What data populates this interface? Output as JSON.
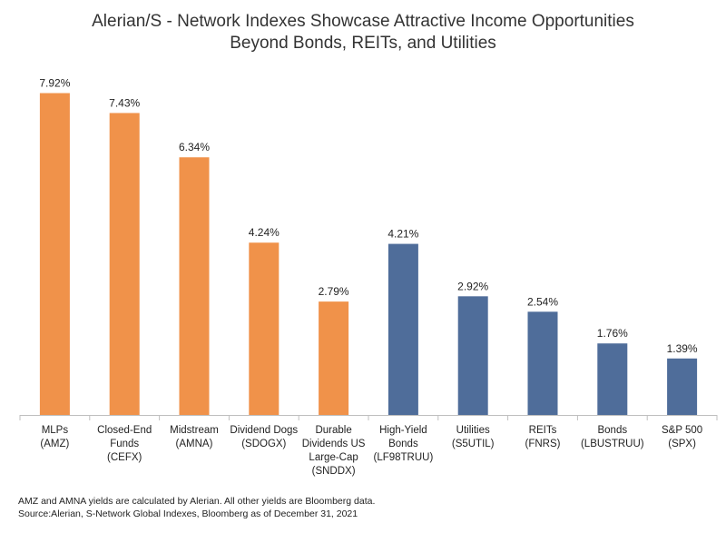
{
  "chart_data": {
    "type": "bar",
    "title": [
      "Alerian/S - Network Indexes Showcase Attractive Income Opportunities",
      "Beyond Bonds, REITs, and Utilities"
    ],
    "categories": [
      [
        "MLPs",
        "(AMZ)"
      ],
      [
        "Closed-End",
        "Funds",
        "(CEFX)"
      ],
      [
        "Midstream",
        "(AMNA)"
      ],
      [
        "Dividend Dogs",
        "(SDOGX)"
      ],
      [
        "Durable",
        "Dividends US",
        "Large-Cap",
        "(SNDDX)"
      ],
      [
        "High-Yield",
        "Bonds",
        "(LF98TRUU)"
      ],
      [
        "Utilities",
        "(S5UTIL)"
      ],
      [
        "REITs",
        "(FNRS)"
      ],
      [
        "Bonds",
        "(LBUSTRUU)"
      ],
      [
        "S&P 500",
        "(SPX)"
      ]
    ],
    "values": [
      7.92,
      7.43,
      6.34,
      4.24,
      2.79,
      4.21,
      2.92,
      2.54,
      1.76,
      1.39
    ],
    "data_labels": [
      "7.92%",
      "7.43%",
      "6.34%",
      "4.24%",
      "2.79%",
      "4.21%",
      "2.92%",
      "2.54%",
      "1.76%",
      "1.39%"
    ],
    "bar_colors": [
      "#F0924A",
      "#F0924A",
      "#F0924A",
      "#F0924A",
      "#F0924A",
      "#4F6D9A",
      "#4F6D9A",
      "#4F6D9A",
      "#4F6D9A",
      "#4F6D9A"
    ],
    "ylim": [
      0,
      8.2
    ],
    "xlabel": "",
    "ylabel": "",
    "grid": false,
    "legend": "none"
  },
  "footer": {
    "note": "AMZ and AMNA yields are calculated by Alerian. All other yields are Bloomberg data.",
    "source": "Source:Alerian, S-Network Global Indexes, Bloomberg as of December 31, 2021"
  }
}
